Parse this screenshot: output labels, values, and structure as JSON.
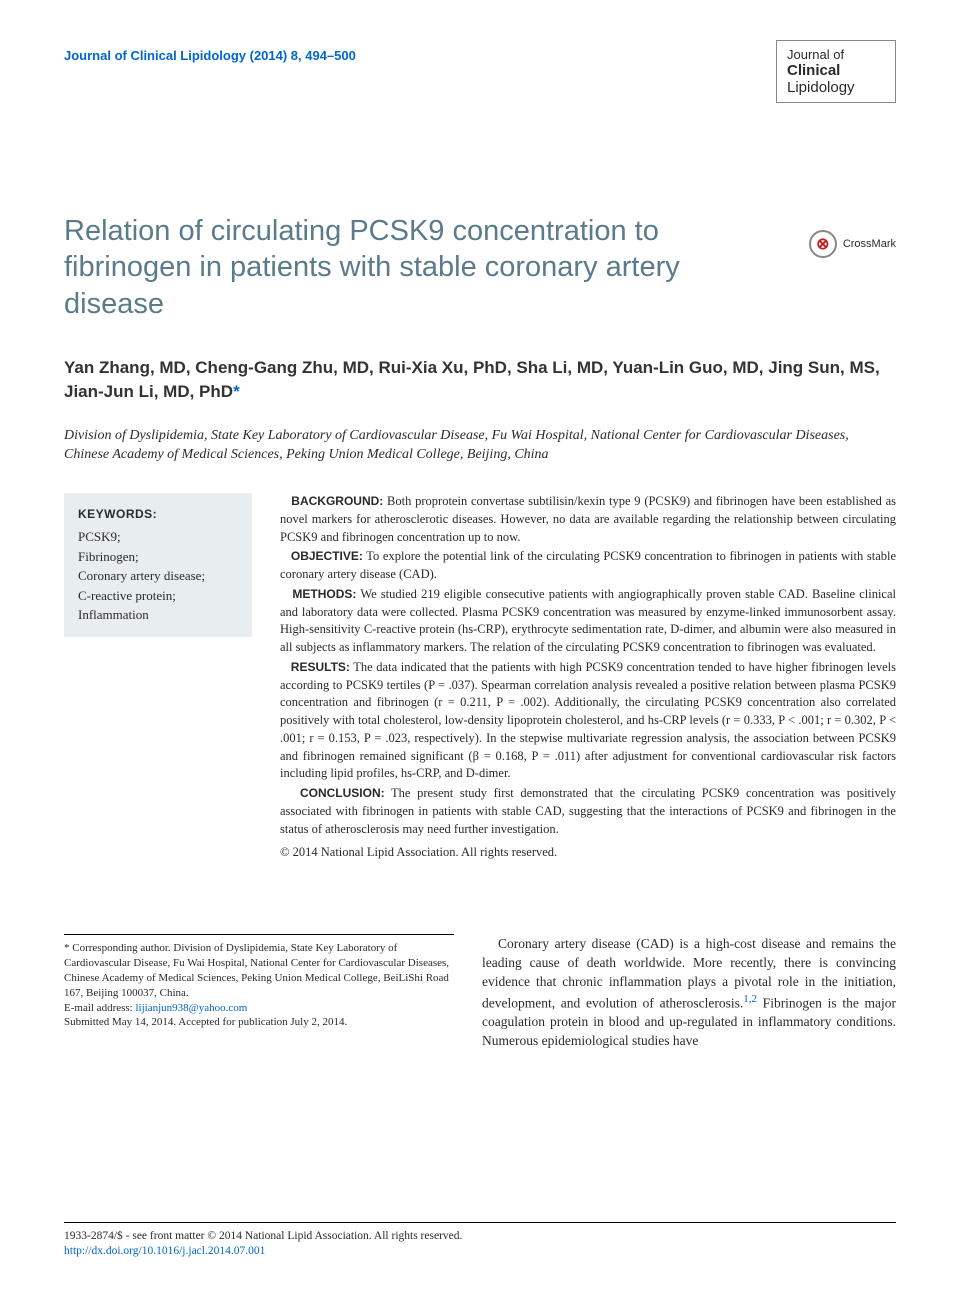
{
  "journal_ref": "Journal of Clinical Lipidology (2014) 8, 494–500",
  "journal_logo": {
    "line1": "Journal of",
    "line2": "Clinical",
    "line3": "Lipidology"
  },
  "crossmark_label": "CrossMark",
  "title": "Relation of circulating PCSK9 concentration to fibrinogen in patients with stable coronary artery disease",
  "authors": "Yan Zhang, MD, Cheng-Gang Zhu, MD, Rui-Xia Xu, PhD, Sha Li, MD, Yuan-Lin Guo, MD, Jing Sun, MS, Jian-Jun Li, MD, PhD",
  "corr_marker": "*",
  "affiliation": "Division of Dyslipidemia, State Key Laboratory of Cardiovascular Disease, Fu Wai Hospital, National Center for Cardiovascular Diseases, Chinese Academy of Medical Sciences, Peking Union Medical College, Beijing, China",
  "keywords_heading": "KEYWORDS:",
  "keywords": "PCSK9;\nFibrinogen;\nCoronary artery disease;\nC-reactive protein;\nInflammation",
  "abstract": {
    "background_label": "BACKGROUND:",
    "background": " Both proprotein convertase subtilisin/kexin type 9 (PCSK9) and fibrinogen have been established as novel markers for atherosclerotic diseases. However, no data are available regarding the relationship between circulating PCSK9 and fibrinogen concentration up to now.",
    "objective_label": "OBJECTIVE:",
    "objective": " To explore the potential link of the circulating PCSK9 concentration to fibrinogen in patients with stable coronary artery disease (CAD).",
    "methods_label": "METHODS:",
    "methods": " We studied 219 eligible consecutive patients with angiographically proven stable CAD. Baseline clinical and laboratory data were collected. Plasma PCSK9 concentration was measured by enzyme-linked immunosorbent assay. High-sensitivity C-reactive protein (hs-CRP), erythrocyte sedimentation rate, D-dimer, and albumin were also measured in all subjects as inflammatory markers. The relation of the circulating PCSK9 concentration to fibrinogen was evaluated.",
    "results_label": "RESULTS:",
    "results": " The data indicated that the patients with high PCSK9 concentration tended to have higher fibrinogen levels according to PCSK9 tertiles (P = .037). Spearman correlation analysis revealed a positive relation between plasma PCSK9 concentration and fibrinogen (r = 0.211, P = .002). Additionally, the circulating PCSK9 concentration also correlated positively with total cholesterol, low-density lipoprotein cholesterol, and hs-CRP levels (r = 0.333, P < .001; r = 0.302, P < .001; r = 0.153, P = .023, respectively). In the stepwise multivariate regression analysis, the association between PCSK9 and fibrinogen remained significant (β = 0.168, P = .011) after adjustment for conventional cardiovascular risk factors including lipid profiles, hs-CRP, and D-dimer.",
    "conclusion_label": "CONCLUSION:",
    "conclusion": " The present study first demonstrated that the circulating PCSK9 concentration was positively associated with fibrinogen in patients with stable CAD, suggesting that the interactions of PCSK9 and fibrinogen in the status of atherosclerosis may need further investigation.",
    "copyright": "© 2014 National Lipid Association. All rights reserved."
  },
  "footnote": {
    "corr": "* Corresponding author. Division of Dyslipidemia, State Key Laboratory of Cardiovascular Disease, Fu Wai Hospital, National Center for Cardiovascular Diseases, Chinese Academy of Medical Sciences, Peking Union Medical College, BeiLiShi Road 167, Beijing 100037, China.",
    "email_label": "E-mail address: ",
    "email": "lijianjun938@yahoo.com",
    "submitted": "Submitted May 14, 2014. Accepted for publication July 2, 2014."
  },
  "intro": {
    "para1_a": "Coronary artery disease (CAD) is a high-cost disease and remains the leading cause of death worldwide. More recently, there is convincing evidence that chronic inflammation plays a pivotal role in the initiation, development, and evolution of atherosclerosis.",
    "ref12": "1,2",
    "para1_b": " Fibrinogen is the major coagulation protein in blood and up-regulated in inflammatory conditions. Numerous epidemiological studies have"
  },
  "footer": {
    "line1": "1933-2874/$ - see front matter © 2014 National Lipid Association. All rights reserved.",
    "doi": "http://dx.doi.org/10.1016/j.jacl.2014.07.001"
  },
  "colors": {
    "link": "#0066cc",
    "title": "#5b7a8a",
    "kw_bg": "#e8eef0"
  }
}
